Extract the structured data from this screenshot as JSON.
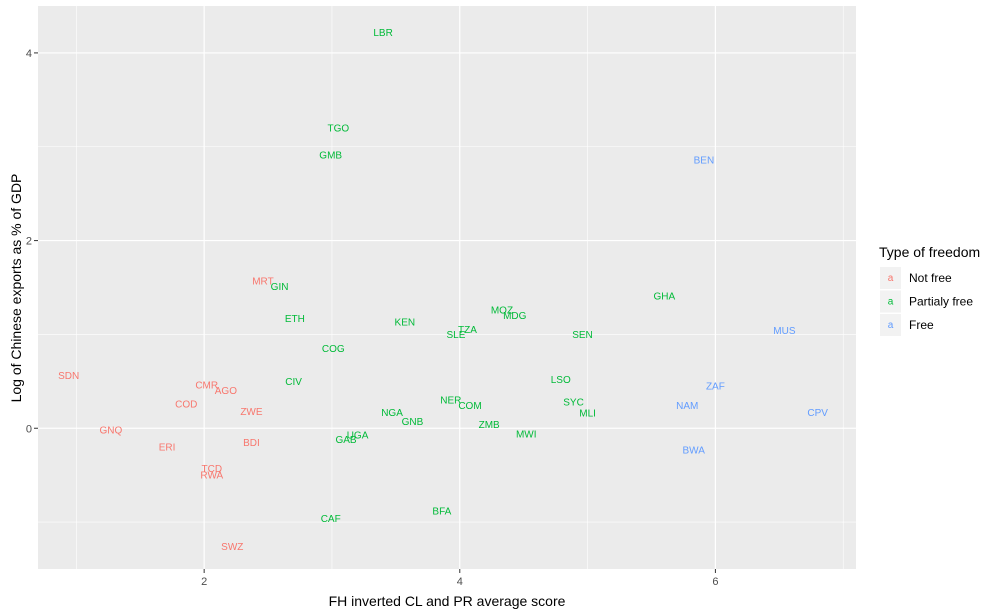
{
  "chart_data": {
    "type": "scatter",
    "xlabel": "FH inverted CL and PR average score",
    "ylabel": "Log of Chinese exports as % of GDP",
    "xlim": [
      0.7,
      7.1
    ],
    "ylim": [
      -1.5,
      4.5
    ],
    "x_ticks": [
      2,
      4,
      6
    ],
    "y_ticks": [
      0,
      2,
      4
    ],
    "x_tick_labels": [
      "2",
      "4",
      "6"
    ],
    "y_tick_labels": [
      "0",
      "2",
      "4"
    ],
    "grid": true,
    "legend": {
      "title": "Type of freedom",
      "placement": "right",
      "key_glyph": "a",
      "entries": [
        {
          "label": "Not free",
          "color": "#F8766D"
        },
        {
          "label": "Partialy free",
          "color": "#00BA38"
        },
        {
          "label": "Free",
          "color": "#619CFF"
        }
      ]
    },
    "series": [
      {
        "name": "Not free",
        "color": "#F8766D",
        "points": [
          {
            "label": "SDN",
            "x": 0.94,
            "y": 0.56
          },
          {
            "label": "GNQ",
            "x": 1.27,
            "y": -0.02
          },
          {
            "label": "ERI",
            "x": 1.71,
            "y": -0.2
          },
          {
            "label": "CMR",
            "x": 2.02,
            "y": 0.46
          },
          {
            "label": "AGO",
            "x": 2.17,
            "y": 0.4
          },
          {
            "label": "COD",
            "x": 1.86,
            "y": 0.26
          },
          {
            "label": "ZWE",
            "x": 2.37,
            "y": 0.18
          },
          {
            "label": "BDI",
            "x": 2.37,
            "y": -0.15
          },
          {
            "label": "TCD",
            "x": 2.06,
            "y": -0.43
          },
          {
            "label": "RWA",
            "x": 2.06,
            "y": -0.5
          },
          {
            "label": "MRT",
            "x": 2.46,
            "y": 1.57
          },
          {
            "label": "SWZ",
            "x": 2.22,
            "y": -1.26
          }
        ]
      },
      {
        "name": "Partialy free",
        "color": "#00BA38",
        "points": [
          {
            "label": "LBR",
            "x": 3.4,
            "y": 4.22
          },
          {
            "label": "TGO",
            "x": 3.05,
            "y": 3.2
          },
          {
            "label": "GMB",
            "x": 2.99,
            "y": 2.91
          },
          {
            "label": "GIN",
            "x": 2.59,
            "y": 1.51
          },
          {
            "label": "ETH",
            "x": 2.71,
            "y": 1.17
          },
          {
            "label": "KEN",
            "x": 3.57,
            "y": 1.13
          },
          {
            "label": "MOZ",
            "x": 4.33,
            "y": 1.26
          },
          {
            "label": "MDG",
            "x": 4.43,
            "y": 1.2
          },
          {
            "label": "TZA",
            "x": 4.06,
            "y": 1.05
          },
          {
            "label": "SLE",
            "x": 3.97,
            "y": 1.0
          },
          {
            "label": "SEN",
            "x": 4.96,
            "y": 1.0
          },
          {
            "label": "GHA",
            "x": 5.6,
            "y": 1.41
          },
          {
            "label": "COG",
            "x": 3.01,
            "y": 0.85
          },
          {
            "label": "CIV",
            "x": 2.7,
            "y": 0.5
          },
          {
            "label": "LSO",
            "x": 4.79,
            "y": 0.52
          },
          {
            "label": "NER",
            "x": 3.93,
            "y": 0.3
          },
          {
            "label": "COM",
            "x": 4.08,
            "y": 0.24
          },
          {
            "label": "SYC",
            "x": 4.89,
            "y": 0.28
          },
          {
            "label": "NGA",
            "x": 3.47,
            "y": 0.17
          },
          {
            "label": "MLI",
            "x": 5.0,
            "y": 0.16
          },
          {
            "label": "GNB",
            "x": 3.63,
            "y": 0.07
          },
          {
            "label": "ZMB",
            "x": 4.23,
            "y": 0.04
          },
          {
            "label": "MWI",
            "x": 4.52,
            "y": -0.06
          },
          {
            "label": "UGA",
            "x": 3.2,
            "y": -0.07
          },
          {
            "label": "GAB",
            "x": 3.11,
            "y": -0.12
          },
          {
            "label": "BFA",
            "x": 3.86,
            "y": -0.88
          },
          {
            "label": "CAF",
            "x": 2.99,
            "y": -0.96
          }
        ]
      },
      {
        "name": "Free",
        "color": "#619CFF",
        "points": [
          {
            "label": "BEN",
            "x": 5.91,
            "y": 2.86
          },
          {
            "label": "MUS",
            "x": 6.54,
            "y": 1.04
          },
          {
            "label": "ZAF",
            "x": 6.0,
            "y": 0.45
          },
          {
            "label": "NAM",
            "x": 5.78,
            "y": 0.24
          },
          {
            "label": "CPV",
            "x": 6.8,
            "y": 0.17
          },
          {
            "label": "BWA",
            "x": 5.83,
            "y": -0.23
          }
        ]
      }
    ]
  }
}
